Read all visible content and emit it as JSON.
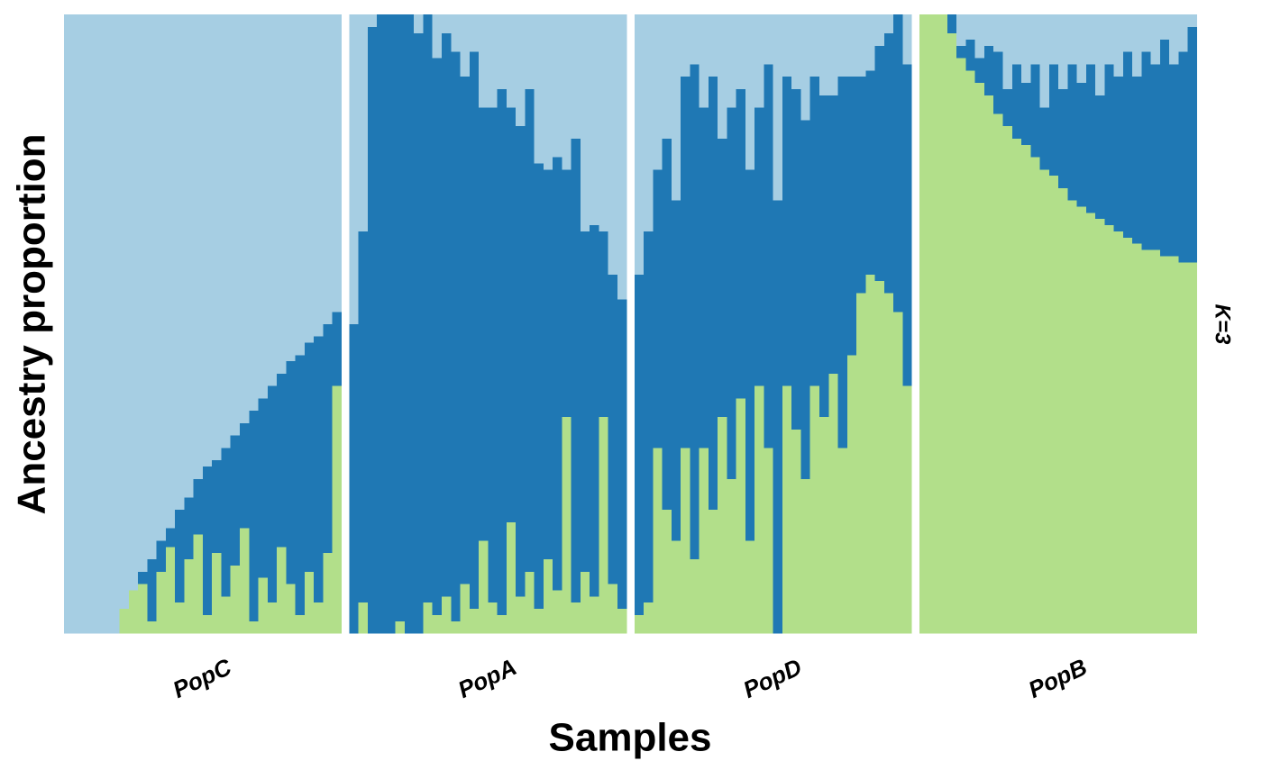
{
  "chart_data": {
    "type": "stacked_bar",
    "x_label": "Samples",
    "y_label": "Ancestry proportion",
    "strip_label": "K=3",
    "ylim": [
      0,
      1
    ],
    "colors": [
      "#b2df8a",
      "#1f78b4",
      "#a6cee3"
    ],
    "panels": [
      {
        "name": "PopC",
        "series": [
          [
            0,
            0,
            0,
            0,
            0,
            0,
            0.04,
            0.07,
            0.08,
            0.02,
            0.1,
            0.14,
            0.05,
            0.12,
            0.16,
            0.03,
            0.13,
            0.06,
            0.11,
            0.17,
            0.02,
            0.09,
            0.05,
            0.14,
            0.08,
            0.03,
            0.1,
            0.05,
            0.13,
            0.4
          ],
          [
            0,
            0,
            0,
            0,
            0,
            0,
            0,
            0,
            0.02,
            0.1,
            0.05,
            0.03,
            0.15,
            0.1,
            0.09,
            0.24,
            0.15,
            0.24,
            0.21,
            0.17,
            0.34,
            0.29,
            0.35,
            0.28,
            0.36,
            0.42,
            0.37,
            0.43,
            0.37,
            0.12
          ],
          [
            1,
            1,
            1,
            1,
            1,
            1,
            0.96,
            0.93,
            0.9,
            0.88,
            0.85,
            0.83,
            0.8,
            0.78,
            0.75,
            0.73,
            0.72,
            0.7,
            0.68,
            0.66,
            0.64,
            0.62,
            0.6,
            0.58,
            0.56,
            0.55,
            0.53,
            0.52,
            0.5,
            0.48
          ]
        ]
      },
      {
        "name": "PopA",
        "series": [
          [
            0,
            0.05,
            0,
            0,
            0,
            0.02,
            0,
            0,
            0.05,
            0.03,
            0.06,
            0.02,
            0.08,
            0.04,
            0.15,
            0.05,
            0.03,
            0.18,
            0.06,
            0.1,
            0.04,
            0.12,
            0.07,
            0.35,
            0.05,
            0.1,
            0.06,
            0.35,
            0.08,
            0.04
          ],
          [
            0.5,
            0.6,
            0.98,
            1,
            1,
            0.98,
            1,
            0.97,
            0.95,
            0.9,
            0.91,
            0.92,
            0.82,
            0.9,
            0.7,
            0.8,
            0.85,
            0.67,
            0.76,
            0.78,
            0.72,
            0.63,
            0.7,
            0.4,
            0.75,
            0.55,
            0.6,
            0.3,
            0.5,
            0.5
          ],
          [
            0.5,
            0.35,
            0.02,
            0,
            0,
            0,
            0,
            0.03,
            0,
            0.07,
            0.03,
            0.06,
            0.1,
            0.06,
            0.15,
            0.15,
            0.12,
            0.15,
            0.18,
            0.12,
            0.24,
            0.25,
            0.23,
            0.25,
            0.2,
            0.35,
            0.34,
            0.35,
            0.42,
            0.46
          ]
        ]
      },
      {
        "name": "PopD",
        "series": [
          [
            0.03,
            0.05,
            0.3,
            0.2,
            0.15,
            0.3,
            0.12,
            0.3,
            0.2,
            0.35,
            0.25,
            0.38,
            0.15,
            0.4,
            0.3,
            0,
            0.4,
            0.33,
            0.25,
            0.4,
            0.35,
            0.42,
            0.3,
            0.45,
            0.55,
            0.58,
            0.57,
            0.55,
            0.52,
            0.4
          ],
          [
            0.55,
            0.6,
            0.45,
            0.6,
            0.55,
            0.6,
            0.8,
            0.55,
            0.7,
            0.45,
            0.6,
            0.5,
            0.6,
            0.45,
            0.62,
            0.7,
            0.5,
            0.55,
            0.58,
            0.5,
            0.52,
            0.45,
            0.6,
            0.45,
            0.35,
            0.33,
            0.38,
            0.42,
            0.48,
            0.52
          ],
          [
            0.42,
            0.35,
            0.25,
            0.2,
            0.3,
            0.1,
            0.08,
            0.15,
            0.1,
            0.2,
            0.15,
            0.12,
            0.25,
            0.15,
            0.08,
            0.3,
            0.1,
            0.12,
            0.17,
            0.1,
            0.13,
            0.13,
            0.1,
            0.1,
            0.1,
            0.09,
            0.05,
            0.03,
            0,
            0.08
          ]
        ]
      },
      {
        "name": "PopB",
        "series": [
          [
            1,
            1,
            1,
            0.97,
            0.93,
            0.91,
            0.89,
            0.87,
            0.84,
            0.82,
            0.8,
            0.79,
            0.77,
            0.75,
            0.74,
            0.72,
            0.7,
            0.69,
            0.68,
            0.67,
            0.66,
            0.65,
            0.64,
            0.63,
            0.62,
            0.62,
            0.61,
            0.61,
            0.6,
            0.6
          ],
          [
            0,
            0,
            0,
            0.03,
            0.02,
            0.05,
            0.04,
            0.08,
            0.1,
            0.06,
            0.12,
            0.1,
            0.15,
            0.1,
            0.18,
            0.16,
            0.22,
            0.2,
            0.24,
            0.2,
            0.26,
            0.25,
            0.3,
            0.27,
            0.32,
            0.3,
            0.35,
            0.31,
            0.34,
            0.38
          ],
          [
            0,
            0,
            0,
            0,
            0.05,
            0.04,
            0.07,
            0.05,
            0.06,
            0.12,
            0.08,
            0.11,
            0.08,
            0.15,
            0.08,
            0.12,
            0.08,
            0.11,
            0.08,
            0.13,
            0.08,
            0.1,
            0.06,
            0.1,
            0.06,
            0.08,
            0.04,
            0.08,
            0.06,
            0.02
          ]
        ]
      }
    ]
  }
}
